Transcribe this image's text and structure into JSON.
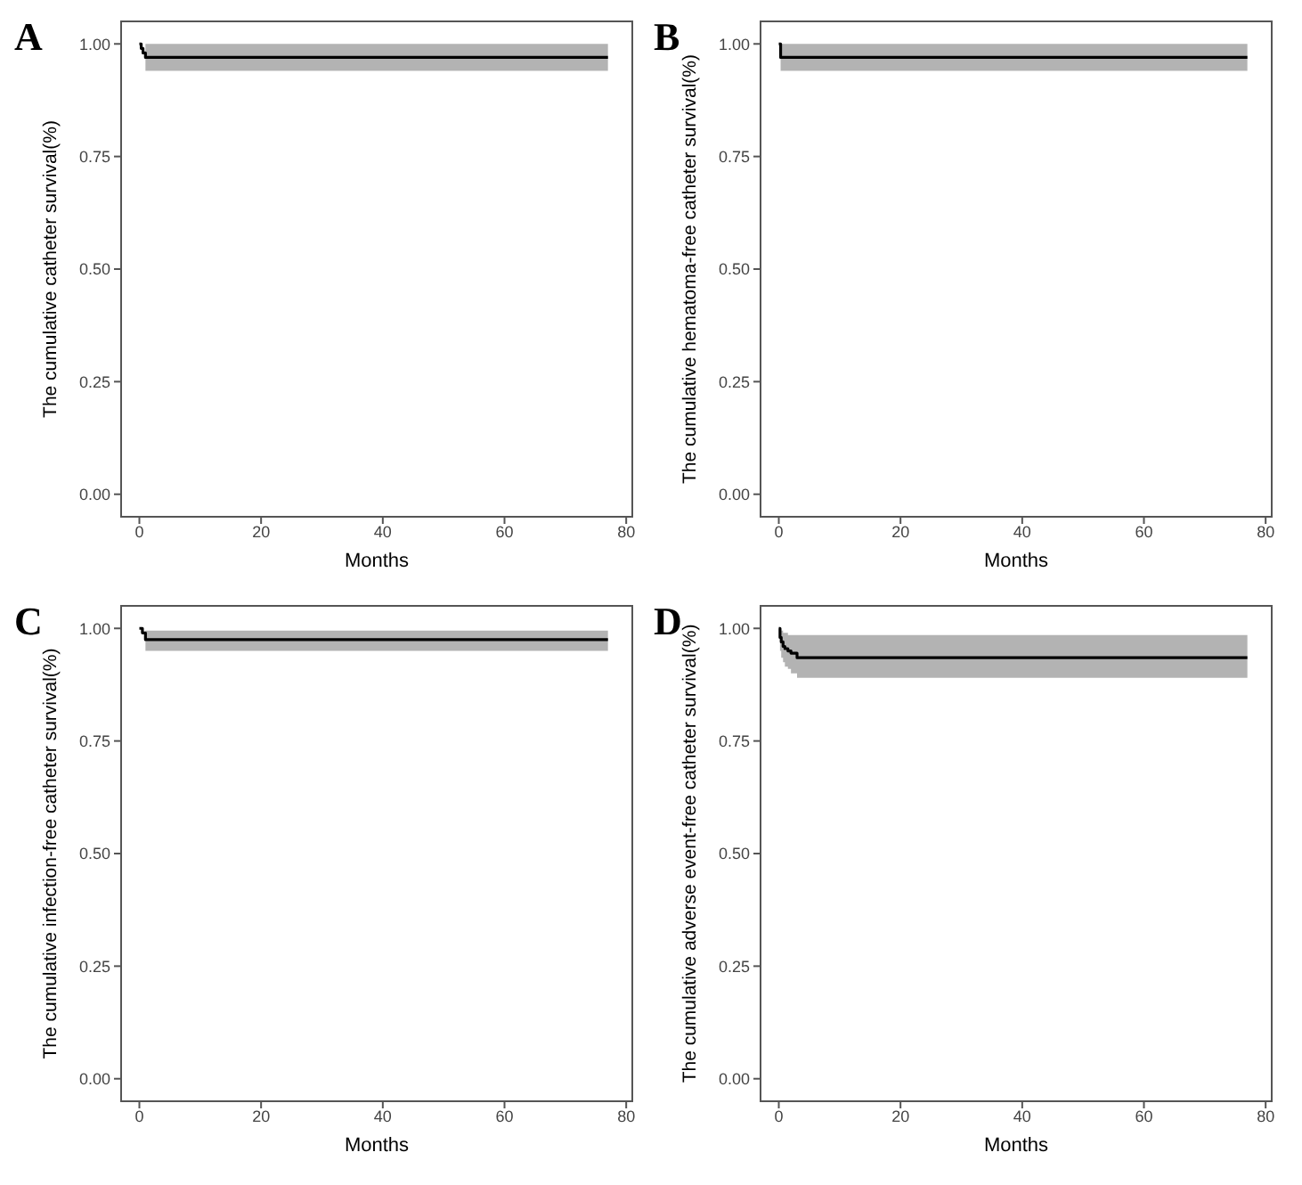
{
  "chart_data": [
    {
      "type": "step",
      "title": "A",
      "xlabel": "Months",
      "ylabel": "The cumulative catheter survival(%)",
      "xlim": [
        -3,
        81
      ],
      "ylim": [
        -0.05,
        1.05
      ],
      "xticks": [
        0,
        20,
        40,
        60,
        80
      ],
      "yticks": [
        {
          "value": 0,
          "label": "0.00"
        },
        {
          "value": 0.25,
          "label": "0.25"
        },
        {
          "value": 0.5,
          "label": "0.50"
        },
        {
          "value": 0.75,
          "label": "0.75"
        },
        {
          "value": 1,
          "label": "1.00"
        }
      ],
      "grid": false,
      "series": [
        {
          "color": "#000000",
          "x": [
            0,
            0.3,
            0.6,
            1,
            77
          ],
          "values": [
            1,
            0.99,
            0.98,
            0.97,
            0.97
          ],
          "lower": [
            null,
            null,
            null,
            0.94,
            0.94
          ],
          "upper": [
            null,
            null,
            null,
            1,
            1
          ]
        }
      ]
    },
    {
      "type": "step",
      "title": "B",
      "xlabel": "Months",
      "ylabel": "The cumulative hematoma-free catheter survival(%)",
      "xlim": [
        -3,
        81
      ],
      "ylim": [
        -0.05,
        1.05
      ],
      "xticks": [
        0,
        20,
        40,
        60,
        80
      ],
      "yticks": [
        {
          "value": 0,
          "label": "0.00"
        },
        {
          "value": 0.25,
          "label": "0.25"
        },
        {
          "value": 0.5,
          "label": "0.50"
        },
        {
          "value": 0.75,
          "label": "0.75"
        },
        {
          "value": 1,
          "label": "1.00"
        }
      ],
      "grid": false,
      "series": [
        {
          "color": "#000000",
          "x": [
            0,
            0.3,
            77
          ],
          "values": [
            1,
            0.97,
            0.97
          ],
          "lower": [
            null,
            0.94,
            0.94
          ],
          "upper": [
            null,
            1,
            1
          ]
        }
      ]
    },
    {
      "type": "step",
      "title": "C",
      "xlabel": "Months",
      "ylabel": "The cumulative infection-free catheter survival(%)",
      "xlim": [
        -3,
        81
      ],
      "ylim": [
        -0.05,
        1.05
      ],
      "xticks": [
        0,
        20,
        40,
        60,
        80
      ],
      "yticks": [
        {
          "value": 0,
          "label": "0.00"
        },
        {
          "value": 0.25,
          "label": "0.25"
        },
        {
          "value": 0.5,
          "label": "0.50"
        },
        {
          "value": 0.75,
          "label": "0.75"
        },
        {
          "value": 1,
          "label": "1.00"
        }
      ],
      "grid": false,
      "series": [
        {
          "color": "#000000",
          "x": [
            0,
            0.5,
            1,
            77
          ],
          "values": [
            1,
            0.99,
            0.975,
            0.975
          ],
          "lower": [
            null,
            null,
            0.95,
            0.95
          ],
          "upper": [
            null,
            null,
            0.995,
            0.995
          ]
        }
      ]
    },
    {
      "type": "step",
      "title": "D",
      "xlabel": "Months",
      "ylabel": "The cumulative adverse event-free catheter survival(%)",
      "xlim": [
        -3,
        81
      ],
      "ylim": [
        -0.05,
        1.05
      ],
      "xticks": [
        0,
        20,
        40,
        60,
        80
      ],
      "yticks": [
        {
          "value": 0,
          "label": "0.00"
        },
        {
          "value": 0.25,
          "label": "0.25"
        },
        {
          "value": 0.5,
          "label": "0.50"
        },
        {
          "value": 0.75,
          "label": "0.75"
        },
        {
          "value": 1,
          "label": "1.00"
        }
      ],
      "grid": false,
      "series": [
        {
          "color": "#000000",
          "x": [
            0,
            0.2,
            0.4,
            0.7,
            1,
            1.5,
            2,
            3,
            77
          ],
          "values": [
            1,
            0.98,
            0.97,
            0.96,
            0.955,
            0.95,
            0.945,
            0.935,
            0.935
          ],
          "lower": [
            null,
            0.95,
            0.935,
            0.925,
            0.915,
            0.91,
            0.9,
            0.89,
            0.89
          ],
          "upper": [
            null,
            1,
            0.995,
            0.99,
            0.99,
            0.985,
            0.985,
            0.985,
            0.985
          ]
        }
      ]
    }
  ]
}
